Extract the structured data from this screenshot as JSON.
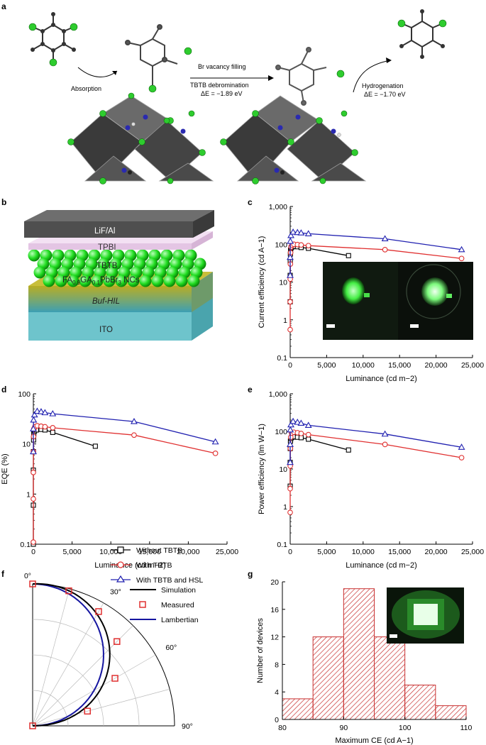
{
  "panel_labels": {
    "a": "a",
    "b": "b",
    "c": "c",
    "d": "d",
    "e": "e",
    "f": "f",
    "g": "g"
  },
  "panel_a": {
    "step1": "Absorption",
    "step2_top": "Br vacancy filling",
    "step2_mid": "TBTB debromination",
    "step2_energy": "ΔE = −1.89 eV",
    "step3_top": "Hydrogenation",
    "step3_energy": "ΔE = −1.70 eV"
  },
  "panel_b": {
    "layers": [
      "LiF/Al",
      "TPBI",
      "TBTB",
      "FA0.9GA0.1PbBr3 NCs",
      "Buf-HIL",
      "ITO"
    ],
    "colors": {
      "lif": "#555555",
      "tpbi": "#e8c8e8",
      "tbtb": "#22ee22",
      "hil": "#9aa53a",
      "ito": "#6ec4cc"
    }
  },
  "legend": {
    "s1": "Without TBTB",
    "s2": "With TBTB",
    "s3": "With TBTB and HSL"
  },
  "colors": {
    "s1": "#000000",
    "s2": "#e03030",
    "s3": "#2020b0",
    "bars": "#c83030",
    "lambertian": "#1515a0"
  },
  "chart_data": [
    {
      "panel": "c",
      "type": "line",
      "xlabel": "Luminance (cd m−2)",
      "ylabel": "Current efficiency (cd A−1)",
      "yscale": "log",
      "xlim": [
        0,
        25000
      ],
      "ylim": [
        0.1,
        1000
      ],
      "xticks": [
        "0",
        "5,000",
        "10,000",
        "15,000",
        "20,000",
        "25,000"
      ],
      "yticks": [
        "0.1",
        "1",
        "10",
        "100",
        "1,000"
      ],
      "series": [
        {
          "name": "Without TBTB",
          "x": [
            0,
            0,
            10,
            30,
            60,
            120,
            250,
            500,
            1000,
            1500,
            2500,
            8000
          ],
          "y": [
            3,
            15,
            35,
            55,
            70,
            80,
            85,
            88,
            86,
            82,
            78,
            50
          ]
        },
        {
          "name": "With TBTB",
          "x": [
            0,
            0,
            10,
            30,
            60,
            120,
            250,
            500,
            1000,
            1500,
            2500,
            13000,
            23500
          ],
          "y": [
            0.55,
            3,
            12,
            30,
            60,
            85,
            95,
            100,
            98,
            96,
            92,
            72,
            42
          ]
        },
        {
          "name": "With TBTB and HSL",
          "x": [
            0,
            0,
            20,
            100,
            400,
            1000,
            1500,
            2500,
            13000,
            23500
          ],
          "y": [
            15,
            45,
            120,
            170,
            210,
            205,
            200,
            190,
            140,
            72
          ]
        }
      ]
    },
    {
      "panel": "d",
      "type": "line",
      "xlabel": "Luminance (cd m−2)",
      "ylabel": "EQE (%)",
      "yscale": "log",
      "xlim": [
        0,
        25000
      ],
      "ylim": [
        0.1,
        100
      ],
      "xticks": [
        "0",
        "5,000",
        "10,000",
        "15,000",
        "20,000",
        "25,000"
      ],
      "yticks": [
        "0.1",
        "1",
        "10",
        "100"
      ],
      "series": [
        {
          "name": "Without TBTB",
          "x": [
            0,
            0,
            0,
            10,
            30,
            60,
            150,
            400,
            1000,
            1500,
            2500,
            8000
          ],
          "y": [
            0.1,
            0.6,
            3,
            7,
            12,
            16,
            18,
            19,
            19.5,
            19,
            17,
            9
          ]
        },
        {
          "name": "With TBTB",
          "x": [
            0,
            0,
            0,
            10,
            30,
            80,
            200,
            500,
            1000,
            1500,
            2500,
            13000,
            23500
          ],
          "y": [
            0.11,
            0.8,
            2.7,
            7,
            14,
            20,
            22,
            23,
            22.5,
            22,
            21,
            15,
            6.5
          ]
        },
        {
          "name": "With TBTB and HSL",
          "x": [
            0,
            0,
            30,
            150,
            500,
            1000,
            1500,
            2500,
            13000,
            23500
          ],
          "y": [
            7,
            20,
            30,
            38,
            45,
            44,
            42,
            40,
            28,
            11
          ]
        }
      ]
    },
    {
      "panel": "e",
      "type": "line",
      "xlabel": "Luminance (cd m−2)",
      "ylabel": "Power efficiency (lm W−1)",
      "yscale": "log",
      "xlim": [
        0,
        25000
      ],
      "ylim": [
        0.1,
        1000
      ],
      "xticks": [
        "0",
        "5,000",
        "10,000",
        "15,000",
        "20,000",
        "25,000"
      ],
      "yticks": [
        "0.1",
        "1",
        "10",
        "100",
        "1,000"
      ],
      "series": [
        {
          "name": "Without TBTB",
          "x": [
            0,
            0,
            10,
            40,
            100,
            250,
            500,
            1000,
            1500,
            2500,
            8000
          ],
          "y": [
            3.5,
            15,
            35,
            55,
            65,
            70,
            72,
            70,
            68,
            62,
            32
          ]
        },
        {
          "name": "With TBTB",
          "x": [
            0,
            0,
            10,
            30,
            80,
            200,
            500,
            1000,
            1500,
            2500,
            13000,
            23500
          ],
          "y": [
            0.7,
            3,
            12,
            35,
            70,
            90,
            95,
            92,
            88,
            82,
            45,
            20
          ]
        },
        {
          "name": "With TBTB and HSL",
          "x": [
            0,
            0,
            20,
            100,
            400,
            1000,
            1500,
            2500,
            13000,
            23500
          ],
          "y": [
            15,
            45,
            110,
            150,
            185,
            175,
            165,
            145,
            85,
            38
          ]
        }
      ]
    },
    {
      "panel": "f",
      "type": "scatter",
      "subtype": "polar",
      "angle_ticks": [
        "0°",
        "30°",
        "60°",
        "90°"
      ],
      "series": [
        {
          "name": "Simulation",
          "style": "line"
        },
        {
          "name": "Measured",
          "style": "markers",
          "angle_deg": [
            0,
            15,
            30,
            45,
            60,
            75,
            90
          ],
          "intensity": [
            1.0,
            0.985,
            0.93,
            0.84,
            0.67,
            0.4,
            0.0
          ]
        },
        {
          "name": "Lambertian",
          "style": "line",
          "function": "cos"
        }
      ]
    },
    {
      "panel": "g",
      "type": "bar",
      "subtype": "histogram",
      "xlabel": "Maximum CE (cd A−1)",
      "ylabel": "Number of devices",
      "xlim": [
        80,
        110
      ],
      "ylim": [
        0,
        20
      ],
      "xticks": [
        "80",
        "90",
        "100",
        "110"
      ],
      "yticks": [
        "0",
        "4",
        "8",
        "12",
        "16",
        "20"
      ],
      "bin_edges": [
        80,
        85,
        90,
        95,
        100,
        105,
        110
      ],
      "values": [
        3,
        12,
        19,
        12,
        5,
        2
      ]
    }
  ]
}
